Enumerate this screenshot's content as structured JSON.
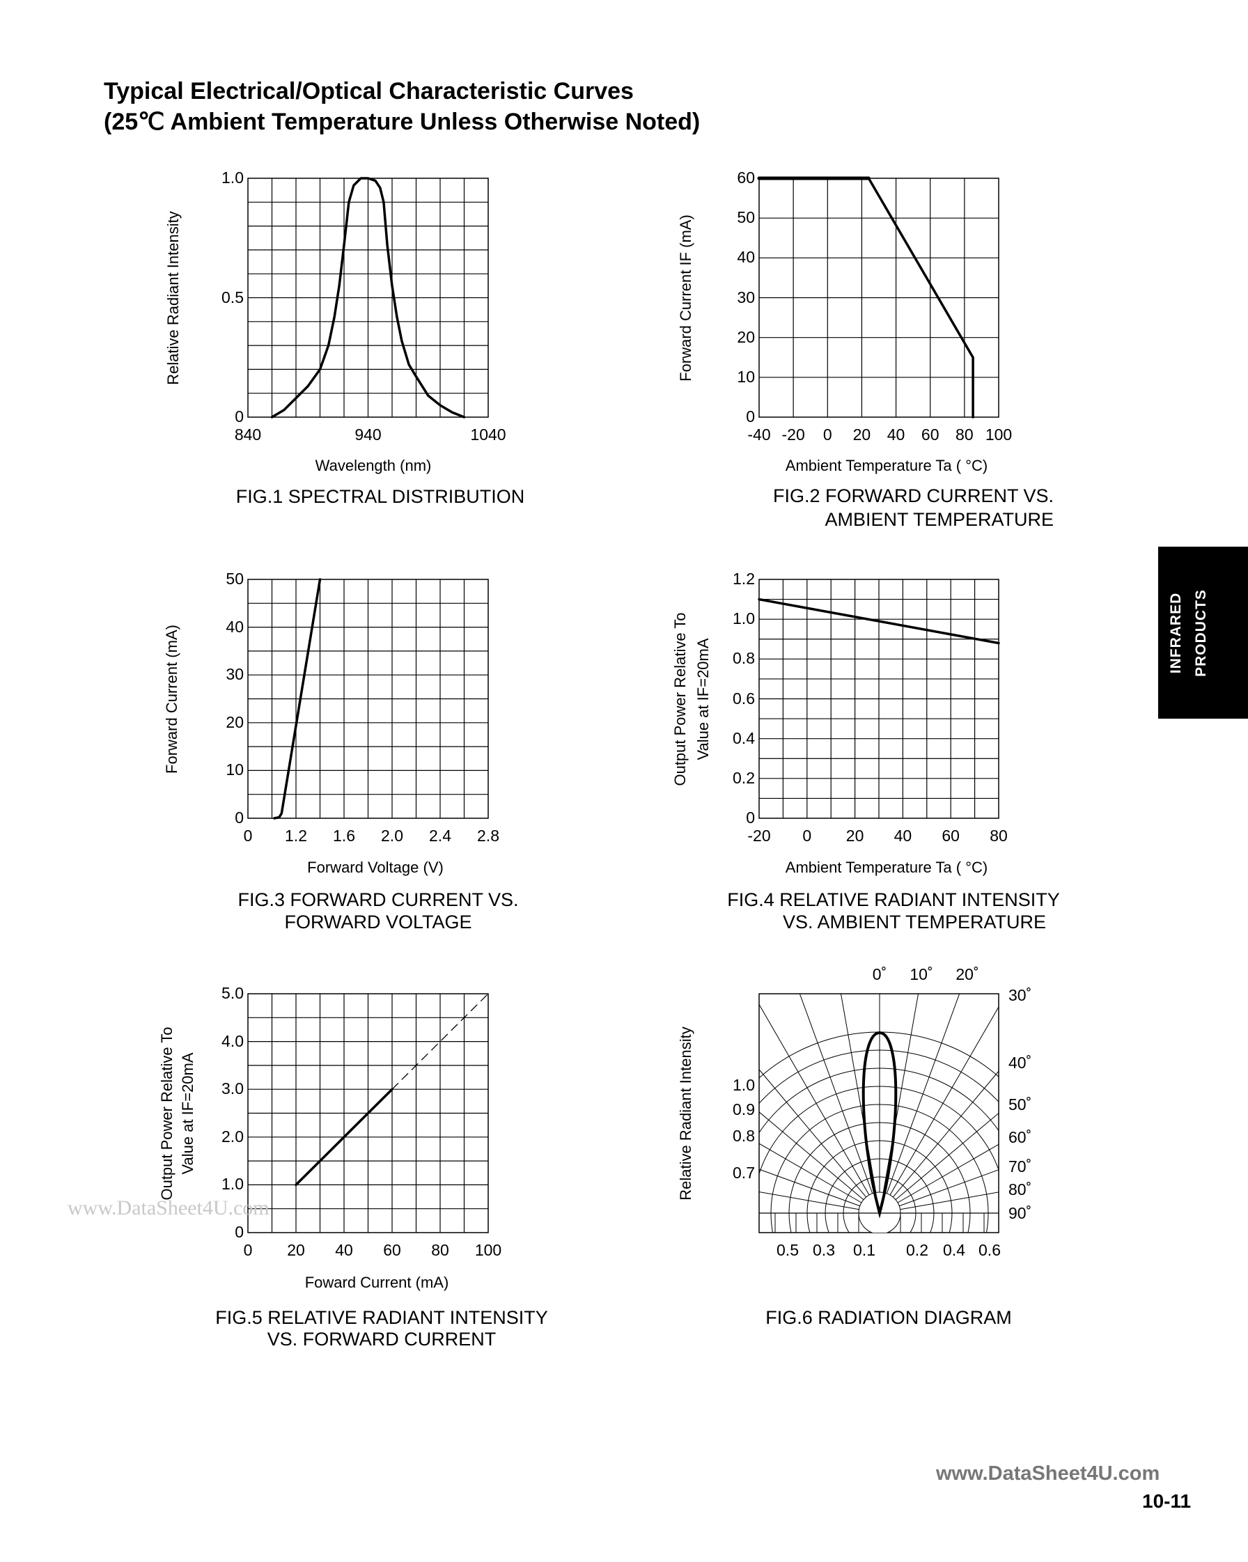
{
  "header": {
    "title_line1": "Typical Electrical/Optical Characteristic Curves",
    "title_line2": "(25℃ Ambient Temperature Unless Otherwise Noted)"
  },
  "side_tab": {
    "line1": "INFRARED",
    "line2": "PRODUCTS",
    "background": "#000000"
  },
  "footer": {
    "website": "www.DataSheet4U.com",
    "page_number": "10-11"
  },
  "watermark": "www.DataSheet4U.com",
  "chart_data": [
    {
      "id": "fig1",
      "type": "line",
      "caption": [
        "FIG.1  SPECTRAL DISTRIBUTION"
      ],
      "xlabel": "Wavelength (nm)",
      "ylabel": [
        "Relative Radiant Intensity"
      ],
      "xlim": [
        840,
        1040
      ],
      "ylim": [
        0,
        1.0
      ],
      "grid": true,
      "x_ticks": [
        {
          "value": 840,
          "label": "840"
        },
        {
          "value": 940,
          "label": "940"
        },
        {
          "value": 1040,
          "label": "1040"
        }
      ],
      "y_ticks": [
        {
          "value": 0,
          "label": "0"
        },
        {
          "value": 0.5,
          "label": "0.5"
        },
        {
          "value": 1.0,
          "label": "1.0"
        }
      ],
      "series": [
        {
          "style": "solid",
          "points": [
            [
              860,
              0
            ],
            [
              870,
              0.03
            ],
            [
              880,
              0.08
            ],
            [
              890,
              0.13
            ],
            [
              900,
              0.2
            ],
            [
              907,
              0.3
            ],
            [
              912,
              0.42
            ],
            [
              916,
              0.55
            ],
            [
              920,
              0.72
            ],
            [
              924,
              0.9
            ],
            [
              928,
              0.97
            ],
            [
              934,
              1.0
            ],
            [
              940,
              1.0
            ],
            [
              946,
              0.99
            ],
            [
              950,
              0.96
            ],
            [
              953,
              0.9
            ],
            [
              956,
              0.72
            ],
            [
              960,
              0.55
            ],
            [
              964,
              0.42
            ],
            [
              968,
              0.32
            ],
            [
              974,
              0.22
            ],
            [
              980,
              0.17
            ],
            [
              990,
              0.09
            ],
            [
              1000,
              0.05
            ],
            [
              1010,
              0.02
            ],
            [
              1020,
              0
            ]
          ]
        }
      ]
    },
    {
      "id": "fig2",
      "type": "line",
      "caption": [
        "FIG.2  FORWARD CURRENT VS.",
        "AMBIENT TEMPERATURE"
      ],
      "xlabel": "Ambient Temperature Ta ( °C)",
      "ylabel": [
        "Forward Current IF (mA)"
      ],
      "xlim": [
        -40,
        100
      ],
      "ylim": [
        0,
        60
      ],
      "grid": true,
      "x_ticks": [
        {
          "value": -40,
          "label": "-40"
        },
        {
          "value": -20,
          "label": "-20"
        },
        {
          "value": 0,
          "label": "0"
        },
        {
          "value": 20,
          "label": "20"
        },
        {
          "value": 40,
          "label": "40"
        },
        {
          "value": 60,
          "label": "60"
        },
        {
          "value": 80,
          "label": "80"
        },
        {
          "value": 100,
          "label": "100"
        }
      ],
      "y_ticks": [
        {
          "value": 0,
          "label": "0"
        },
        {
          "value": 10,
          "label": "10"
        },
        {
          "value": 20,
          "label": "20"
        },
        {
          "value": 30,
          "label": "30"
        },
        {
          "value": 40,
          "label": "40"
        },
        {
          "value": 50,
          "label": "50"
        },
        {
          "value": 60,
          "label": "60"
        }
      ],
      "series": [
        {
          "style": "thick",
          "points": [
            [
              -40,
              60
            ],
            [
              24,
              60
            ]
          ]
        },
        {
          "style": "solid",
          "points": [
            [
              24,
              60
            ],
            [
              85,
              15
            ],
            [
              85,
              0
            ]
          ]
        }
      ]
    },
    {
      "id": "fig3",
      "type": "line",
      "caption": [
        "FIG.3  FORWARD CURRENT VS.",
        "FORWARD VOLTAGE"
      ],
      "xlabel": "Forward Voltage (V)",
      "ylabel": [
        "Forward Current (mA)"
      ],
      "xlim": [
        0.8,
        2.8
      ],
      "ylim": [
        0,
        50
      ],
      "grid": true,
      "x_ticks": [
        {
          "value": 0.8,
          "label": "0"
        },
        {
          "value": 1.2,
          "label": "1.2"
        },
        {
          "value": 1.6,
          "label": "1.6"
        },
        {
          "value": 2.0,
          "label": "2.0"
        },
        {
          "value": 2.4,
          "label": "2.4"
        },
        {
          "value": 2.8,
          "label": "2.8"
        }
      ],
      "y_ticks": [
        {
          "value": 0,
          "label": "0"
        },
        {
          "value": 10,
          "label": "10"
        },
        {
          "value": 20,
          "label": "20"
        },
        {
          "value": 30,
          "label": "30"
        },
        {
          "value": 40,
          "label": "40"
        },
        {
          "value": 50,
          "label": "50"
        }
      ],
      "series": [
        {
          "style": "solid",
          "points": [
            [
              1.02,
              0
            ],
            [
              1.06,
              0.2
            ],
            [
              1.08,
              1
            ],
            [
              1.4,
              50
            ]
          ]
        }
      ]
    },
    {
      "id": "fig4",
      "type": "line",
      "caption": [
        "FIG.4  RELATIVE RADIANT INTENSITY",
        "VS. AMBIENT TEMPERATURE"
      ],
      "xlabel": "Ambient Temperature Ta ( °C)",
      "ylabel": [
        "Output Power Relative To",
        "Value at IF=20mA"
      ],
      "xlim": [
        -20,
        80
      ],
      "ylim": [
        0,
        1.2
      ],
      "grid": true,
      "x_ticks": [
        {
          "value": -20,
          "label": "-20"
        },
        {
          "value": 0,
          "label": "0"
        },
        {
          "value": 20,
          "label": "20"
        },
        {
          "value": 40,
          "label": "40"
        },
        {
          "value": 60,
          "label": "60"
        },
        {
          "value": 80,
          "label": "80"
        }
      ],
      "y_ticks": [
        {
          "value": 0,
          "label": "0"
        },
        {
          "value": 0.2,
          "label": "0.2"
        },
        {
          "value": 0.4,
          "label": "0.4"
        },
        {
          "value": 0.6,
          "label": "0.6"
        },
        {
          "value": 0.8,
          "label": "0.8"
        },
        {
          "value": 1.0,
          "label": "1.0"
        },
        {
          "value": 1.2,
          "label": "1.2"
        }
      ],
      "series": [
        {
          "style": "solid",
          "points": [
            [
              -20,
              1.1
            ],
            [
              80,
              0.88
            ]
          ]
        }
      ]
    },
    {
      "id": "fig5",
      "type": "line",
      "caption": [
        "FIG.5  RELATIVE RADIANT INTENSITY",
        "VS. FORWARD CURRENT"
      ],
      "xlabel": "Foward Current (mA)",
      "ylabel": [
        "Output Power Relative To",
        "Value at IF=20mA"
      ],
      "xlim": [
        0,
        100
      ],
      "ylim": [
        0,
        5.0
      ],
      "grid": true,
      "x_ticks": [
        {
          "value": 0,
          "label": "0"
        },
        {
          "value": 20,
          "label": "20"
        },
        {
          "value": 40,
          "label": "40"
        },
        {
          "value": 60,
          "label": "60"
        },
        {
          "value": 80,
          "label": "80"
        },
        {
          "value": 100,
          "label": "100"
        }
      ],
      "y_ticks": [
        {
          "value": 0,
          "label": "0"
        },
        {
          "value": 1.0,
          "label": "1.0"
        },
        {
          "value": 2.0,
          "label": "2.0"
        },
        {
          "value": 3.0,
          "label": "3.0"
        },
        {
          "value": 4.0,
          "label": "4.0"
        },
        {
          "value": 5.0,
          "label": "5.0"
        }
      ],
      "series": [
        {
          "style": "solid",
          "points": [
            [
              20,
              1.0
            ],
            [
              60,
              3.0
            ]
          ]
        },
        {
          "style": "dashed",
          "points": [
            [
              60,
              3.0
            ],
            [
              100,
              5.0
            ]
          ]
        }
      ]
    },
    {
      "id": "fig6",
      "type": "polar",
      "caption": [
        "FIG.6  RADIATION DIAGRAM"
      ],
      "ylabel": [
        "Relative Radiant Intensity"
      ],
      "angle_labels_top": [
        "0˚",
        "10˚",
        "20˚"
      ],
      "angle_labels_right": [
        "30˚",
        "40˚",
        "50˚",
        "60˚",
        "70˚",
        "80˚",
        "90˚"
      ],
      "intensity_labels_left": [
        "1.0",
        "0.9",
        "0.8",
        "0.7"
      ],
      "bottom_labels": [
        "0.5",
        "0.3",
        "0.1",
        "0.2",
        "0.4",
        "0.6"
      ],
      "lobe_half_angle_deg": 5
    }
  ]
}
